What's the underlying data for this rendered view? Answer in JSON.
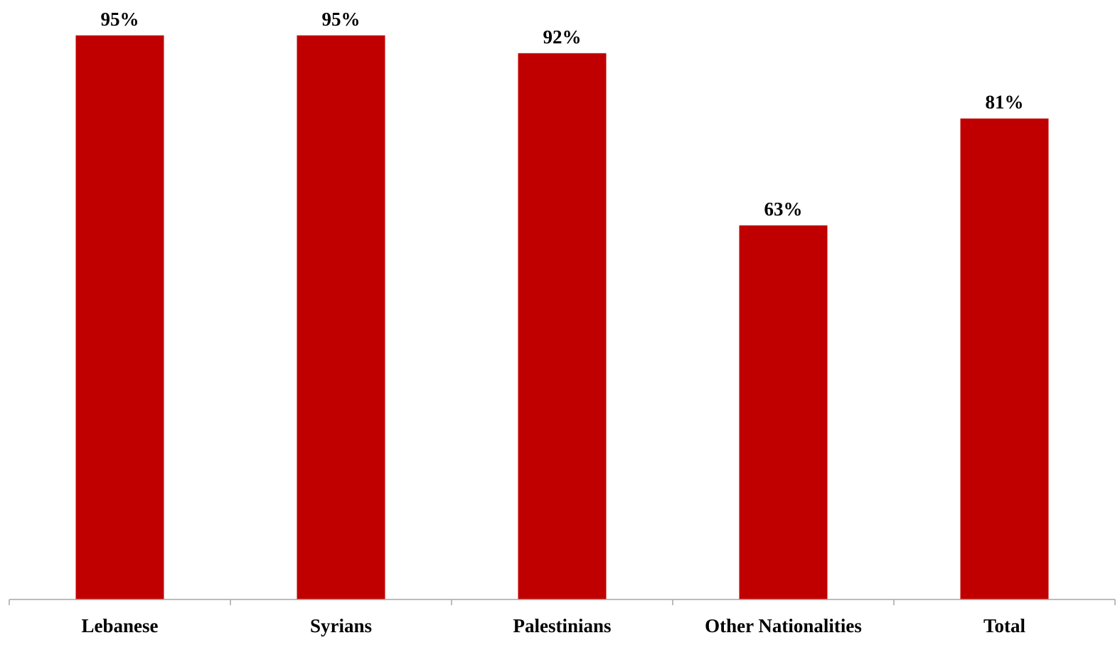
{
  "chart_data": {
    "type": "bar",
    "categories": [
      "Lebanese",
      "Syrians",
      "Palestinians",
      "Other Nationalities",
      "Total"
    ],
    "values": [
      95,
      95,
      92,
      63,
      81
    ],
    "value_labels": [
      "95%",
      "95%",
      "92%",
      "63%",
      "81%"
    ],
    "title": "",
    "xlabel": "",
    "ylabel": "",
    "ylim": [
      0,
      100
    ],
    "grid": false,
    "legend": "none",
    "bar_color": "#C00000",
    "axis_color": "#A6A6A6",
    "text_color": "#000000"
  }
}
